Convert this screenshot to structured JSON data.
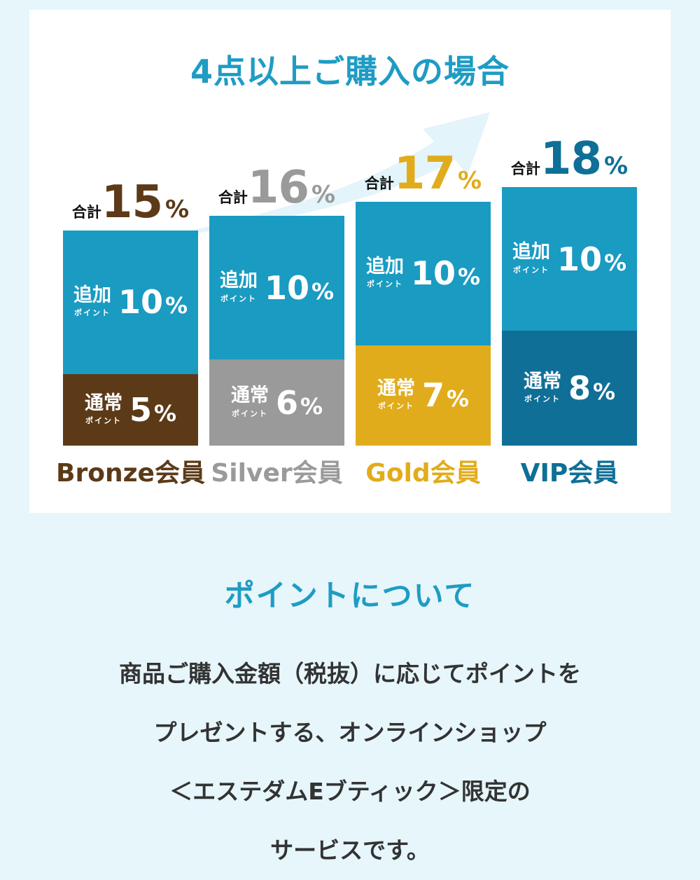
{
  "chart_title": "4点以上ご購入の場合",
  "chart_data": {
    "type": "bar",
    "stacked": true,
    "categories": [
      "Bronze会員",
      "Silver会員",
      "Gold会員",
      "VIP会員"
    ],
    "series": [
      {
        "name": "通常ポイント",
        "values": [
          5,
          6,
          7,
          8
        ]
      },
      {
        "name": "追加ポイント",
        "values": [
          10,
          10,
          10,
          10
        ]
      }
    ],
    "totals": [
      15,
      16,
      17,
      18
    ],
    "total_prefix": "合計",
    "unit": "%",
    "ylim": [
      0,
      18
    ],
    "segment_labels": {
      "normal": {
        "big": "通常",
        "small": "ポイント"
      },
      "extra": {
        "big": "追加",
        "small": "ポイント"
      }
    },
    "colors": {
      "extra": "#1a9bc2",
      "normal": [
        "#5c3a18",
        "#9a9a9a",
        "#e1ac1c",
        "#0f6f97"
      ],
      "labels": [
        "#5c3a18",
        "#9a9a9a",
        "#e1ac1c",
        "#0f6f97"
      ]
    }
  },
  "section_title": "ポイントについて",
  "body_lines": [
    "商品ご購入金額（税抜）に応じてポイントを",
    "プレゼントする、オンラインショップ",
    "＜エステダムEブティック＞限定の",
    "サービスです。"
  ],
  "colors": {
    "accent": "#1e9cc4",
    "background": "#e6f6fb",
    "card": "#ffffff",
    "arrow": "#e3f4fa"
  }
}
